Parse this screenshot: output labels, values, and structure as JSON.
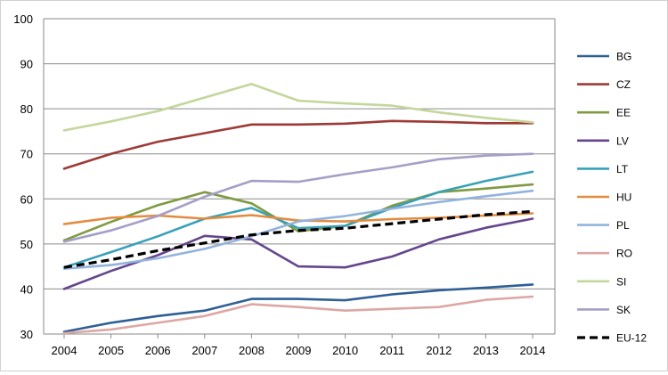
{
  "chart_data": {
    "type": "line",
    "title": "",
    "xlabel": "",
    "ylabel": "",
    "x": [
      "2004",
      "2005",
      "2006",
      "2007",
      "2008",
      "2009",
      "2010",
      "2011",
      "2012",
      "2013",
      "2014"
    ],
    "ylim": [
      30,
      100
    ],
    "yticks": [
      30,
      40,
      50,
      60,
      70,
      80,
      90,
      100
    ],
    "grid": "horizontal",
    "legend_position": "right",
    "series": [
      {
        "name": "BG",
        "color": "#2e5f95",
        "dashed": false,
        "values": [
          30.5,
          32.5,
          34,
          35.2,
          37.8,
          37.8,
          37.5,
          38.8,
          39.7,
          40.3,
          41
        ]
      },
      {
        "name": "CZ",
        "color": "#9e3a36",
        "dashed": false,
        "values": [
          66.7,
          70,
          72.7,
          74.6,
          76.5,
          76.5,
          76.7,
          77.3,
          77.1,
          76.8,
          76.8
        ]
      },
      {
        "name": "EE",
        "color": "#7f9a43",
        "dashed": false,
        "values": [
          50.8,
          54.9,
          58.6,
          61.5,
          59,
          52.8,
          54,
          58.5,
          61.5,
          62.3,
          63.2
        ]
      },
      {
        "name": "LV",
        "color": "#64468c",
        "dashed": false,
        "values": [
          40,
          44,
          47.5,
          51.8,
          51,
          45,
          44.8,
          47.2,
          51,
          53.6,
          55.6
        ]
      },
      {
        "name": "LT",
        "color": "#38a1b8",
        "dashed": false,
        "values": [
          44.8,
          48.2,
          51.7,
          55.6,
          58,
          53.5,
          54,
          58,
          61.5,
          64,
          66
        ]
      },
      {
        "name": "HU",
        "color": "#e38b3e",
        "dashed": false,
        "values": [
          54.4,
          55.8,
          56.3,
          55.6,
          56.4,
          55.2,
          55,
          55.5,
          55.8,
          56.3,
          56.8
        ]
      },
      {
        "name": "PL",
        "color": "#93b3dc",
        "dashed": false,
        "values": [
          44.5,
          45.3,
          46.8,
          48.9,
          51.7,
          55,
          56.2,
          57.8,
          59.3,
          60.6,
          61.8
        ]
      },
      {
        "name": "RO",
        "color": "#dca7a4",
        "dashed": false,
        "values": [
          30.2,
          31,
          32.5,
          34,
          36.6,
          36,
          35.2,
          35.6,
          36,
          37.6,
          38.3
        ]
      },
      {
        "name": "SI",
        "color": "#c3d69b",
        "dashed": false,
        "values": [
          75.2,
          77.2,
          79.5,
          82.5,
          85.5,
          81.8,
          81.2,
          80.7,
          79.2,
          78,
          77
        ]
      },
      {
        "name": "SK",
        "color": "#a59fc7",
        "dashed": false,
        "values": [
          50.5,
          53,
          56.2,
          60.5,
          64,
          63.8,
          65.5,
          67,
          68.8,
          69.6,
          70
        ]
      },
      {
        "name": "EU-12",
        "color": "#000000",
        "dashed": true,
        "values": [
          44.8,
          46.5,
          48.5,
          50.2,
          52,
          53,
          53.5,
          54.5,
          55.5,
          56.5,
          57.2
        ]
      }
    ]
  }
}
